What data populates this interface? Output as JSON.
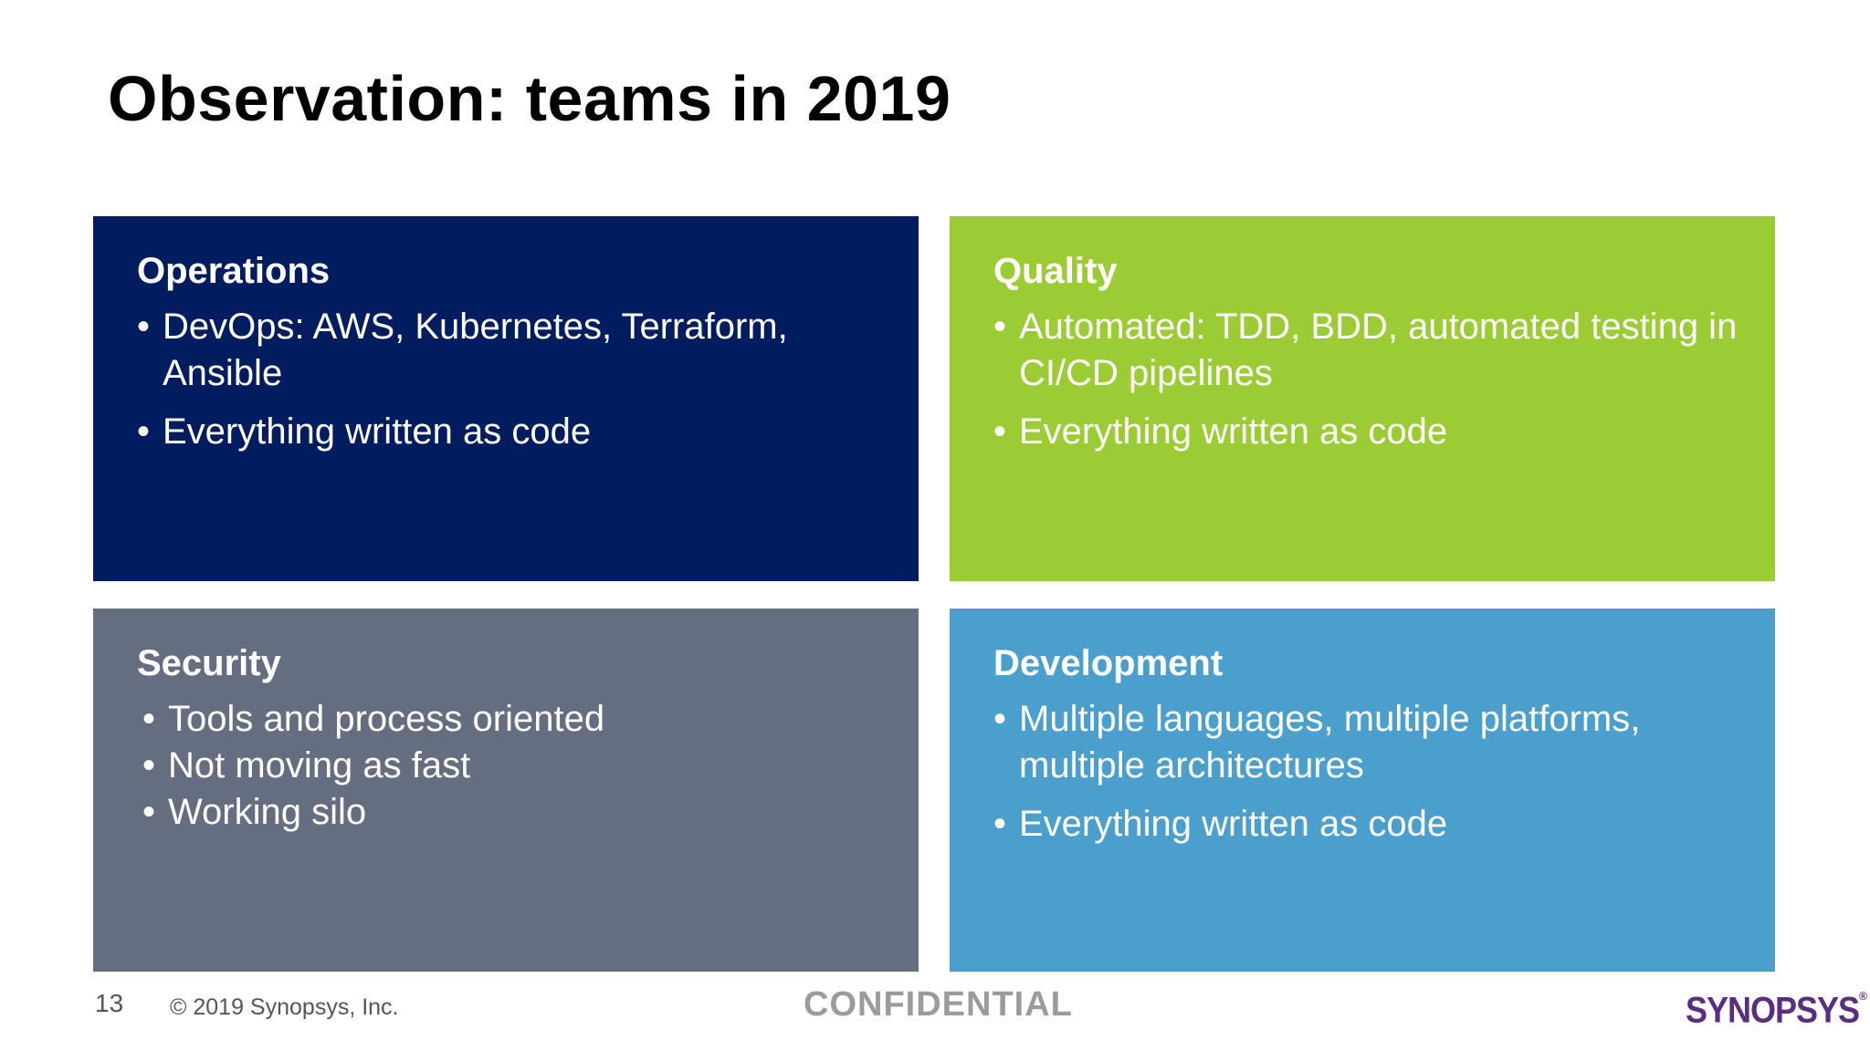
{
  "slide": {
    "title": "Observation: teams in 2019",
    "page_number": "13",
    "copyright": "© 2019 Synopsys, Inc.",
    "confidential": "CONFIDENTIAL",
    "logo_text": "SYNOPSYS",
    "logo_mark": "®"
  },
  "panels": {
    "operations": {
      "color": "#021d5f",
      "heading": "Operations",
      "bullets": [
        "DevOps: AWS, Kubernetes, Terraform, Ansible",
        "Everything written as code"
      ]
    },
    "quality": {
      "color": "#9ccc34",
      "heading": "Quality",
      "bullets": [
        "Automated: TDD, BDD, automated testing in CI/CD pipelines",
        "Everything written as code"
      ]
    },
    "security": {
      "color": "#656d80",
      "heading": "Security",
      "bullets": [
        "Tools and process oriented",
        "Not moving as fast",
        "Working silo"
      ]
    },
    "development": {
      "color": "#4a9fcd",
      "heading": "Development",
      "bullets": [
        "Multiple languages, multiple platforms, multiple architectures",
        "Everything written as code"
      ]
    }
  }
}
